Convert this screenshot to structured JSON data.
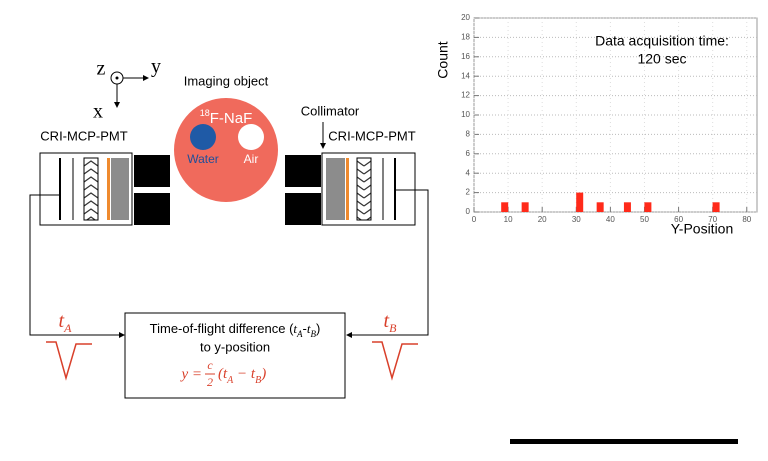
{
  "axes_symbol": {
    "z": "z",
    "y": "y",
    "x": "x"
  },
  "object": {
    "title": "Imaging object",
    "isotope_mass": "18",
    "tracer": "F-NaF",
    "water": "Water",
    "air": "Air"
  },
  "collimator": "Collimator",
  "detector_left": "CRI-MCP-PMT",
  "detector_right": "CRI-MCP-PMT",
  "signal_left": {
    "t": "t",
    "sub": "A"
  },
  "signal_right": {
    "t": "t",
    "sub": "B"
  },
  "processor": {
    "line1": [
      "Time-of-flight difference (",
      "t",
      "A",
      "-",
      "t",
      "B",
      ")"
    ],
    "line2": "to y-position",
    "formula": {
      "lhs": "y =",
      "numerator": "c",
      "denominator": "2",
      "rhs": [
        "(t",
        "A",
        " − t",
        "B",
        ")"
      ]
    }
  },
  "chart_data": {
    "type": "bar",
    "x": [
      9,
      15,
      31,
      37,
      45,
      51,
      71
    ],
    "values": [
      1,
      1,
      2,
      1,
      1,
      1,
      1
    ],
    "color": "#ff2a1a",
    "xlabel": "Y-Position",
    "ylabel": "Count",
    "annotation": [
      "Data acquisition time:",
      "120 sec"
    ],
    "xlim": [
      0,
      83
    ],
    "ylim": [
      0,
      20
    ],
    "xticks": [
      0,
      10,
      20,
      30,
      40,
      50,
      60,
      70,
      80
    ],
    "yticks": [
      0,
      2,
      4,
      6,
      8,
      10,
      12,
      14,
      16,
      18,
      20
    ],
    "grid": true
  }
}
